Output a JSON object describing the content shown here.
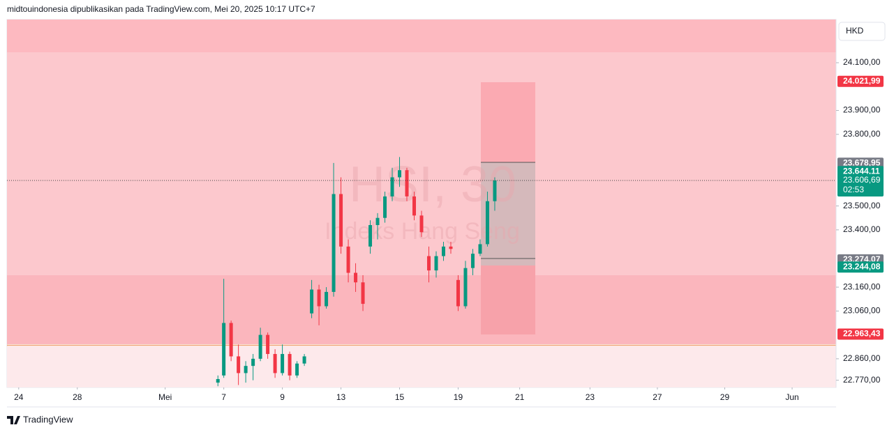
{
  "header": "midtouindonesia dipublikasikan pada TradingView.com, Mei 20, 2025 10:17 UTC+7",
  "footer": "TradingView",
  "chart_data": {
    "type": "candlestick",
    "watermark": "HSI, 30",
    "watermark_subtitle": "Indeks Hang Seng",
    "currency": "HKD",
    "up_color": "#089981",
    "down_color": "#f23645",
    "xlim": [
      -0.4,
      27.9
    ],
    "ylim": [
      22740,
      24281
    ],
    "xticks": [
      {
        "value": 0,
        "label": "24"
      },
      {
        "value": 2,
        "label": "28"
      },
      {
        "value": 5,
        "label": "Mei"
      },
      {
        "value": 7,
        "label": "7"
      },
      {
        "value": 9,
        "label": "9"
      },
      {
        "value": 11,
        "label": "13"
      },
      {
        "value": 13,
        "label": "15"
      },
      {
        "value": 15,
        "label": "19"
      },
      {
        "value": 17.1,
        "label": "21"
      },
      {
        "value": 19.5,
        "label": "23"
      },
      {
        "value": 21.8,
        "label": "27"
      },
      {
        "value": 24.1,
        "label": "29"
      },
      {
        "value": 26.4,
        "label": "Jun"
      }
    ],
    "yticks": [
      {
        "value": 24100,
        "label": "24.100,00"
      },
      {
        "value": 23900,
        "label": "23.900,00"
      },
      {
        "value": 23800,
        "label": "23.800,00"
      },
      {
        "value": 23500,
        "label": "23.500,00"
      },
      {
        "value": 23400,
        "label": "23.400,00"
      },
      {
        "value": 23160,
        "label": "23.160,00"
      },
      {
        "value": 23060,
        "label": "23.060,00"
      },
      {
        "value": 22860,
        "label": "22.860,00"
      },
      {
        "value": 22770,
        "label": "22.770,00"
      }
    ],
    "price_labels": [
      {
        "value": 24021.99,
        "label": "24.021,99",
        "color": "#f23645"
      },
      {
        "value": 23678.95,
        "label": "23.678,95",
        "color": "#787b86"
      },
      {
        "value": 23644.11,
        "label": "23.644,11",
        "color": "#089981"
      },
      {
        "value": 23606.69,
        "label": "23.606,69",
        "color": "#089981",
        "countdown": "02:53"
      },
      {
        "value": 23274.07,
        "label": "23.274,07",
        "color": "#787b86"
      },
      {
        "value": 23244.08,
        "label": "23.244,08",
        "color": "#089981"
      },
      {
        "value": 22963.43,
        "label": "22.963,43",
        "color": "#f23645"
      }
    ],
    "x": [
      6.8,
      7.0,
      7.25,
      7.5,
      7.75,
      8.0,
      8.25,
      8.5,
      8.75,
      9.0,
      9.25,
      9.5,
      9.75,
      10.0,
      10.25,
      10.5,
      10.75,
      11.0,
      11.25,
      11.5,
      11.75,
      12.0,
      12.25,
      12.5,
      12.75,
      13.0,
      13.25,
      13.5,
      13.75,
      14.0,
      14.25,
      14.5,
      14.75,
      15.0,
      15.25,
      15.5,
      15.75,
      16.0,
      16.25
    ],
    "open": [
      22760,
      22790,
      23010,
      22870,
      22800,
      22830,
      22860,
      22960,
      22880,
      22800,
      22880,
      22790,
      22840,
      23050,
      23150,
      23080,
      23140,
      23550,
      23330,
      23220,
      23180,
      23330,
      23420,
      23450,
      23540,
      23620,
      23650,
      23540,
      23460,
      23290,
      23230,
      23290,
      23330,
      23190,
      23080,
      23240,
      23300,
      23340,
      23520
    ],
    "high": [
      22790,
      23195,
      23020,
      22920,
      22850,
      22880,
      22990,
      22970,
      22900,
      22920,
      22890,
      22850,
      22880,
      23190,
      23170,
      23160,
      23680,
      23620,
      23360,
      23260,
      23210,
      23440,
      23470,
      23560,
      23660,
      23705,
      23660,
      23560,
      23480,
      23330,
      23310,
      23350,
      23350,
      23210,
      23270,
      23320,
      23360,
      23560,
      23620
    ],
    "low": [
      22745,
      22780,
      22850,
      22750,
      22760,
      22770,
      22850,
      22860,
      22780,
      22790,
      22770,
      22780,
      22830,
      23030,
      23000,
      23070,
      23120,
      23300,
      23180,
      23140,
      23060,
      23300,
      23360,
      23430,
      23520,
      23580,
      23520,
      23440,
      23370,
      23180,
      23200,
      23270,
      23300,
      23060,
      23070,
      23210,
      23290,
      23330,
      23480
    ],
    "close": [
      22775,
      23010,
      22870,
      22800,
      22830,
      22860,
      22960,
      22880,
      22800,
      22880,
      22790,
      22840,
      22870,
      23150,
      23080,
      23140,
      23550,
      23330,
      23220,
      23180,
      23090,
      23420,
      23450,
      23540,
      23620,
      23650,
      23540,
      23460,
      23390,
      23230,
      23290,
      23330,
      23320,
      23080,
      23240,
      23300,
      23340,
      23520,
      23606.69
    ]
  }
}
